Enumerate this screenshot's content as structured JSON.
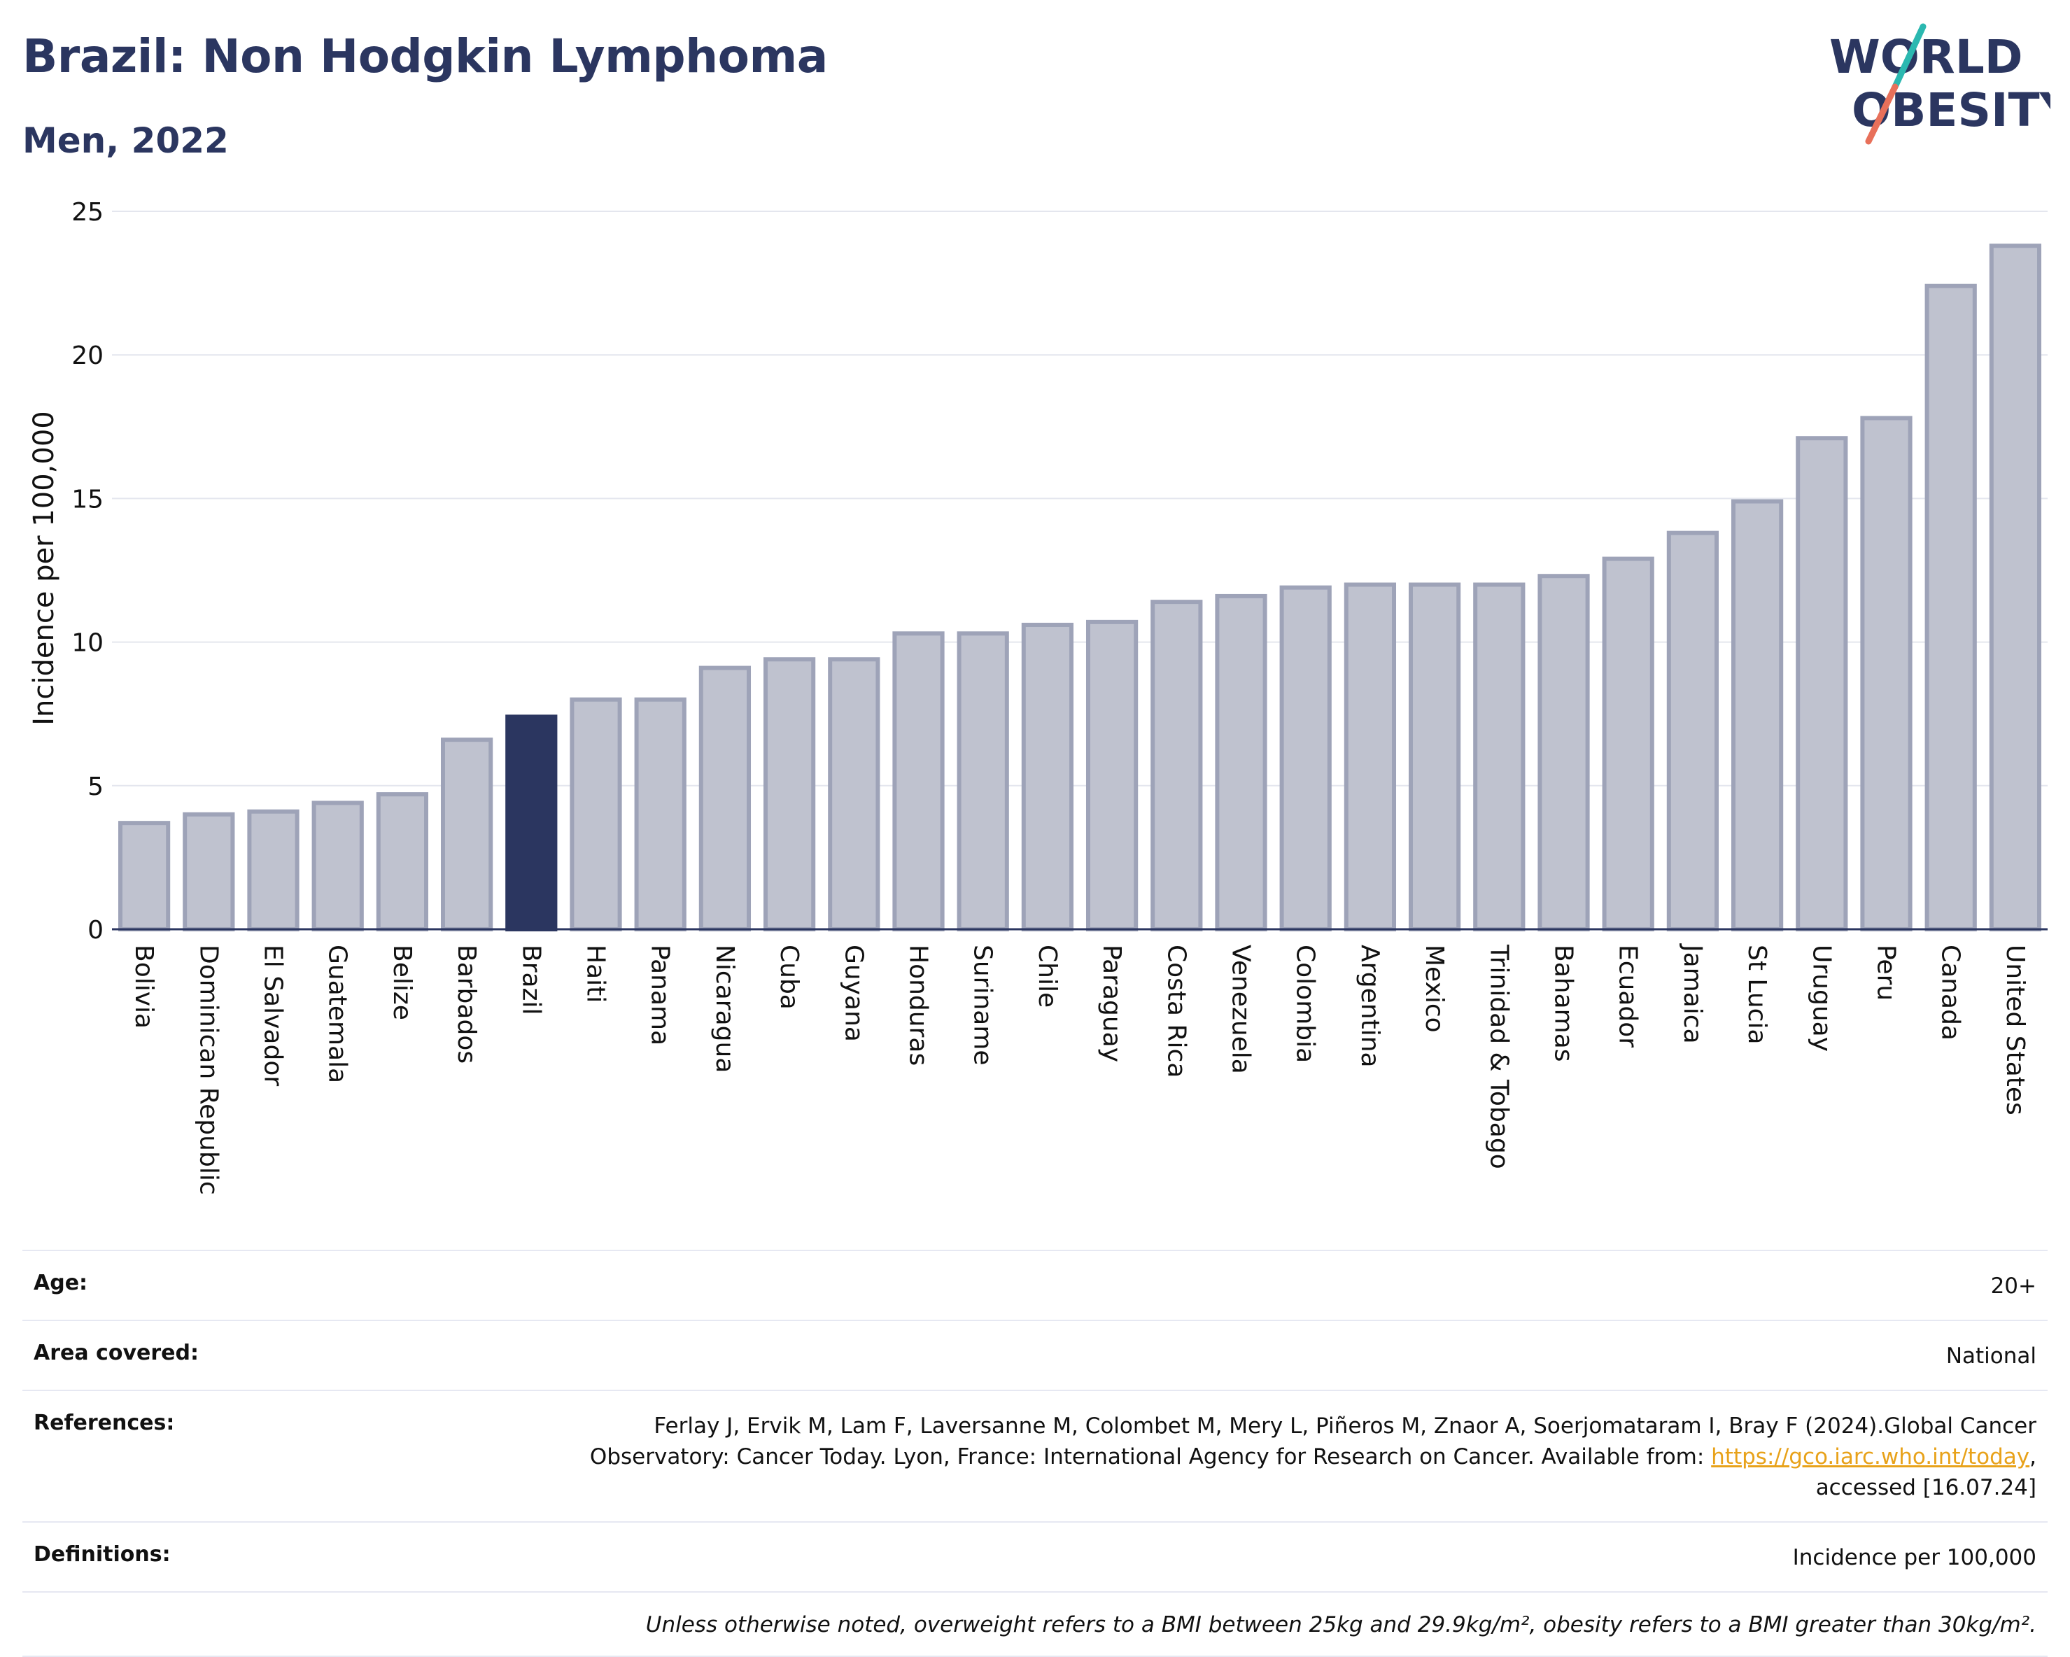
{
  "header": {
    "title": "Brazil: Non Hodgkin Lymphoma",
    "subtitle": "Men, 2022",
    "logo_line1": "WORLD",
    "logo_line2": "OBESITY"
  },
  "colors": {
    "title": "#2b3660",
    "highlight_bar": "#2b3660",
    "bar_fill": "#bfc2cf",
    "bar_stroke": "#9ea3b8",
    "logo_teal": "#2bb8b0",
    "logo_coral": "#e8705a",
    "link": "#e8a21a"
  },
  "chart_data": {
    "type": "bar",
    "categories": [
      "Bolivia",
      "Dominican Republic",
      "El Salvador",
      "Guatemala",
      "Belize",
      "Barbados",
      "Brazil",
      "Haiti",
      "Panama",
      "Nicaragua",
      "Cuba",
      "Guyana",
      "Honduras",
      "Suriname",
      "Chile",
      "Paraguay",
      "Costa Rica",
      "Venezuela",
      "Colombia",
      "Argentina",
      "Mexico",
      "Trinidad & Tobago",
      "Bahamas",
      "Ecuador",
      "Jamaica",
      "St Lucia",
      "Uruguay",
      "Peru",
      "Canada",
      "United States"
    ],
    "values": [
      3.7,
      4.0,
      4.1,
      4.4,
      4.7,
      6.6,
      7.4,
      8.0,
      8.0,
      9.1,
      9.4,
      9.4,
      10.3,
      10.3,
      10.6,
      10.7,
      11.4,
      11.6,
      11.9,
      12.0,
      12.0,
      12.0,
      12.3,
      12.9,
      13.8,
      14.9,
      17.1,
      17.8,
      22.4,
      23.8
    ],
    "highlight": "Brazil",
    "ylabel": "Incidence per 100,000",
    "yticks": [
      0,
      5,
      10,
      15,
      20,
      25
    ],
    "ylim": [
      0,
      25
    ],
    "grid": true
  },
  "info": {
    "age_label": "Age:",
    "age_value": "20+",
    "area_label": "Area covered:",
    "area_value": "National",
    "refs_label": "References:",
    "refs_line1": "Ferlay J, Ervik M, Lam F, Laversanne M, Colombet M, Mery L, Piñeros M, Znaor A, Soerjomataram I, Bray F (2024).Global Cancer",
    "refs_line2_pre": "Observatory: Cancer Today. Lyon, France: International Agency for Research on Cancer. Available from: ",
    "refs_link": "https://gco.iarc.who.int/today",
    "refs_line2_post": ",",
    "refs_line3": "accessed [16.07.24]",
    "defs_label": "Definitions:",
    "defs_value": "Incidence per 100,000",
    "note": "Unless otherwise noted, overweight refers to a BMI between 25kg and 29.9kg/m², obesity refers to a BMI greater than 30kg/m²."
  }
}
